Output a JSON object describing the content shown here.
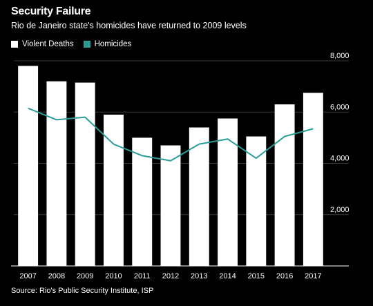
{
  "title": "Security Failure",
  "subtitle": "Rio de Janeiro state's homicides have returned to 2009 levels",
  "source": "Source: Rio's Public Security Institute, ISP",
  "colors": {
    "background": "#000000",
    "bars": "#ffffff",
    "line": "#2a9d96",
    "grid": "#3a3a3a",
    "axis": "#ffffff"
  },
  "legend": [
    {
      "label": "Violent Deaths",
      "color": "#ffffff"
    },
    {
      "label": "Homicides",
      "color": "#2a9d96"
    }
  ],
  "chart_data": {
    "type": "bar",
    "categories": [
      "2007",
      "2008",
      "2009",
      "2010",
      "2011",
      "2012",
      "2013",
      "2014",
      "2015",
      "2016",
      "2017"
    ],
    "series": [
      {
        "name": "Violent Deaths",
        "type": "bar",
        "values": [
          7800,
          7200,
          7150,
          5900,
          5000,
          4700,
          5400,
          5750,
          5050,
          6300,
          6750
        ]
      },
      {
        "name": "Homicides",
        "type": "line",
        "values": [
          6150,
          5700,
          5800,
          4750,
          4300,
          4100,
          4750,
          4950,
          4200,
          5050,
          5350
        ]
      }
    ],
    "ylim": [
      0,
      8000
    ],
    "yticks": [
      2000,
      4000,
      6000,
      8000
    ],
    "ytick_labels": [
      "2,000",
      "4,000",
      "6,000",
      "8,000"
    ],
    "grid": true,
    "y_axis_side": "right",
    "legend_position": "top-left"
  }
}
